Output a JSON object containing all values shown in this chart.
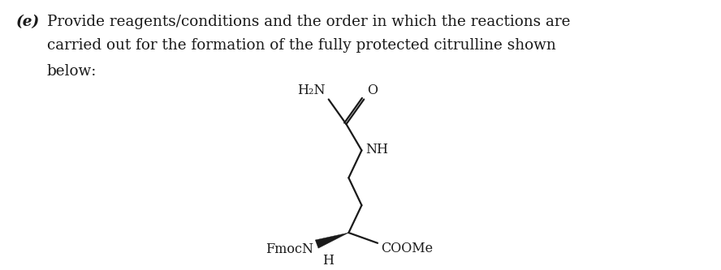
{
  "background_color": "#ffffff",
  "question_label": "(e)",
  "question_text_line1": "Provide reagents/conditions and the order in which the reactions are",
  "question_text_line2": "carried out for the formation of the fully protected citrulline shown",
  "question_text_line3": "below:",
  "font_size_question": 13.2,
  "font_family": "DejaVu Serif",
  "label_H2N": "H₂N",
  "label_O": "O",
  "label_NH": "NH",
  "label_FmocN": "FmocN",
  "label_H": "H",
  "label_COOMe": "COOMe",
  "line_color": "#1a1a1a",
  "text_color": "#1a1a1a",
  "fs_chem": 11.5,
  "lw": 1.6
}
